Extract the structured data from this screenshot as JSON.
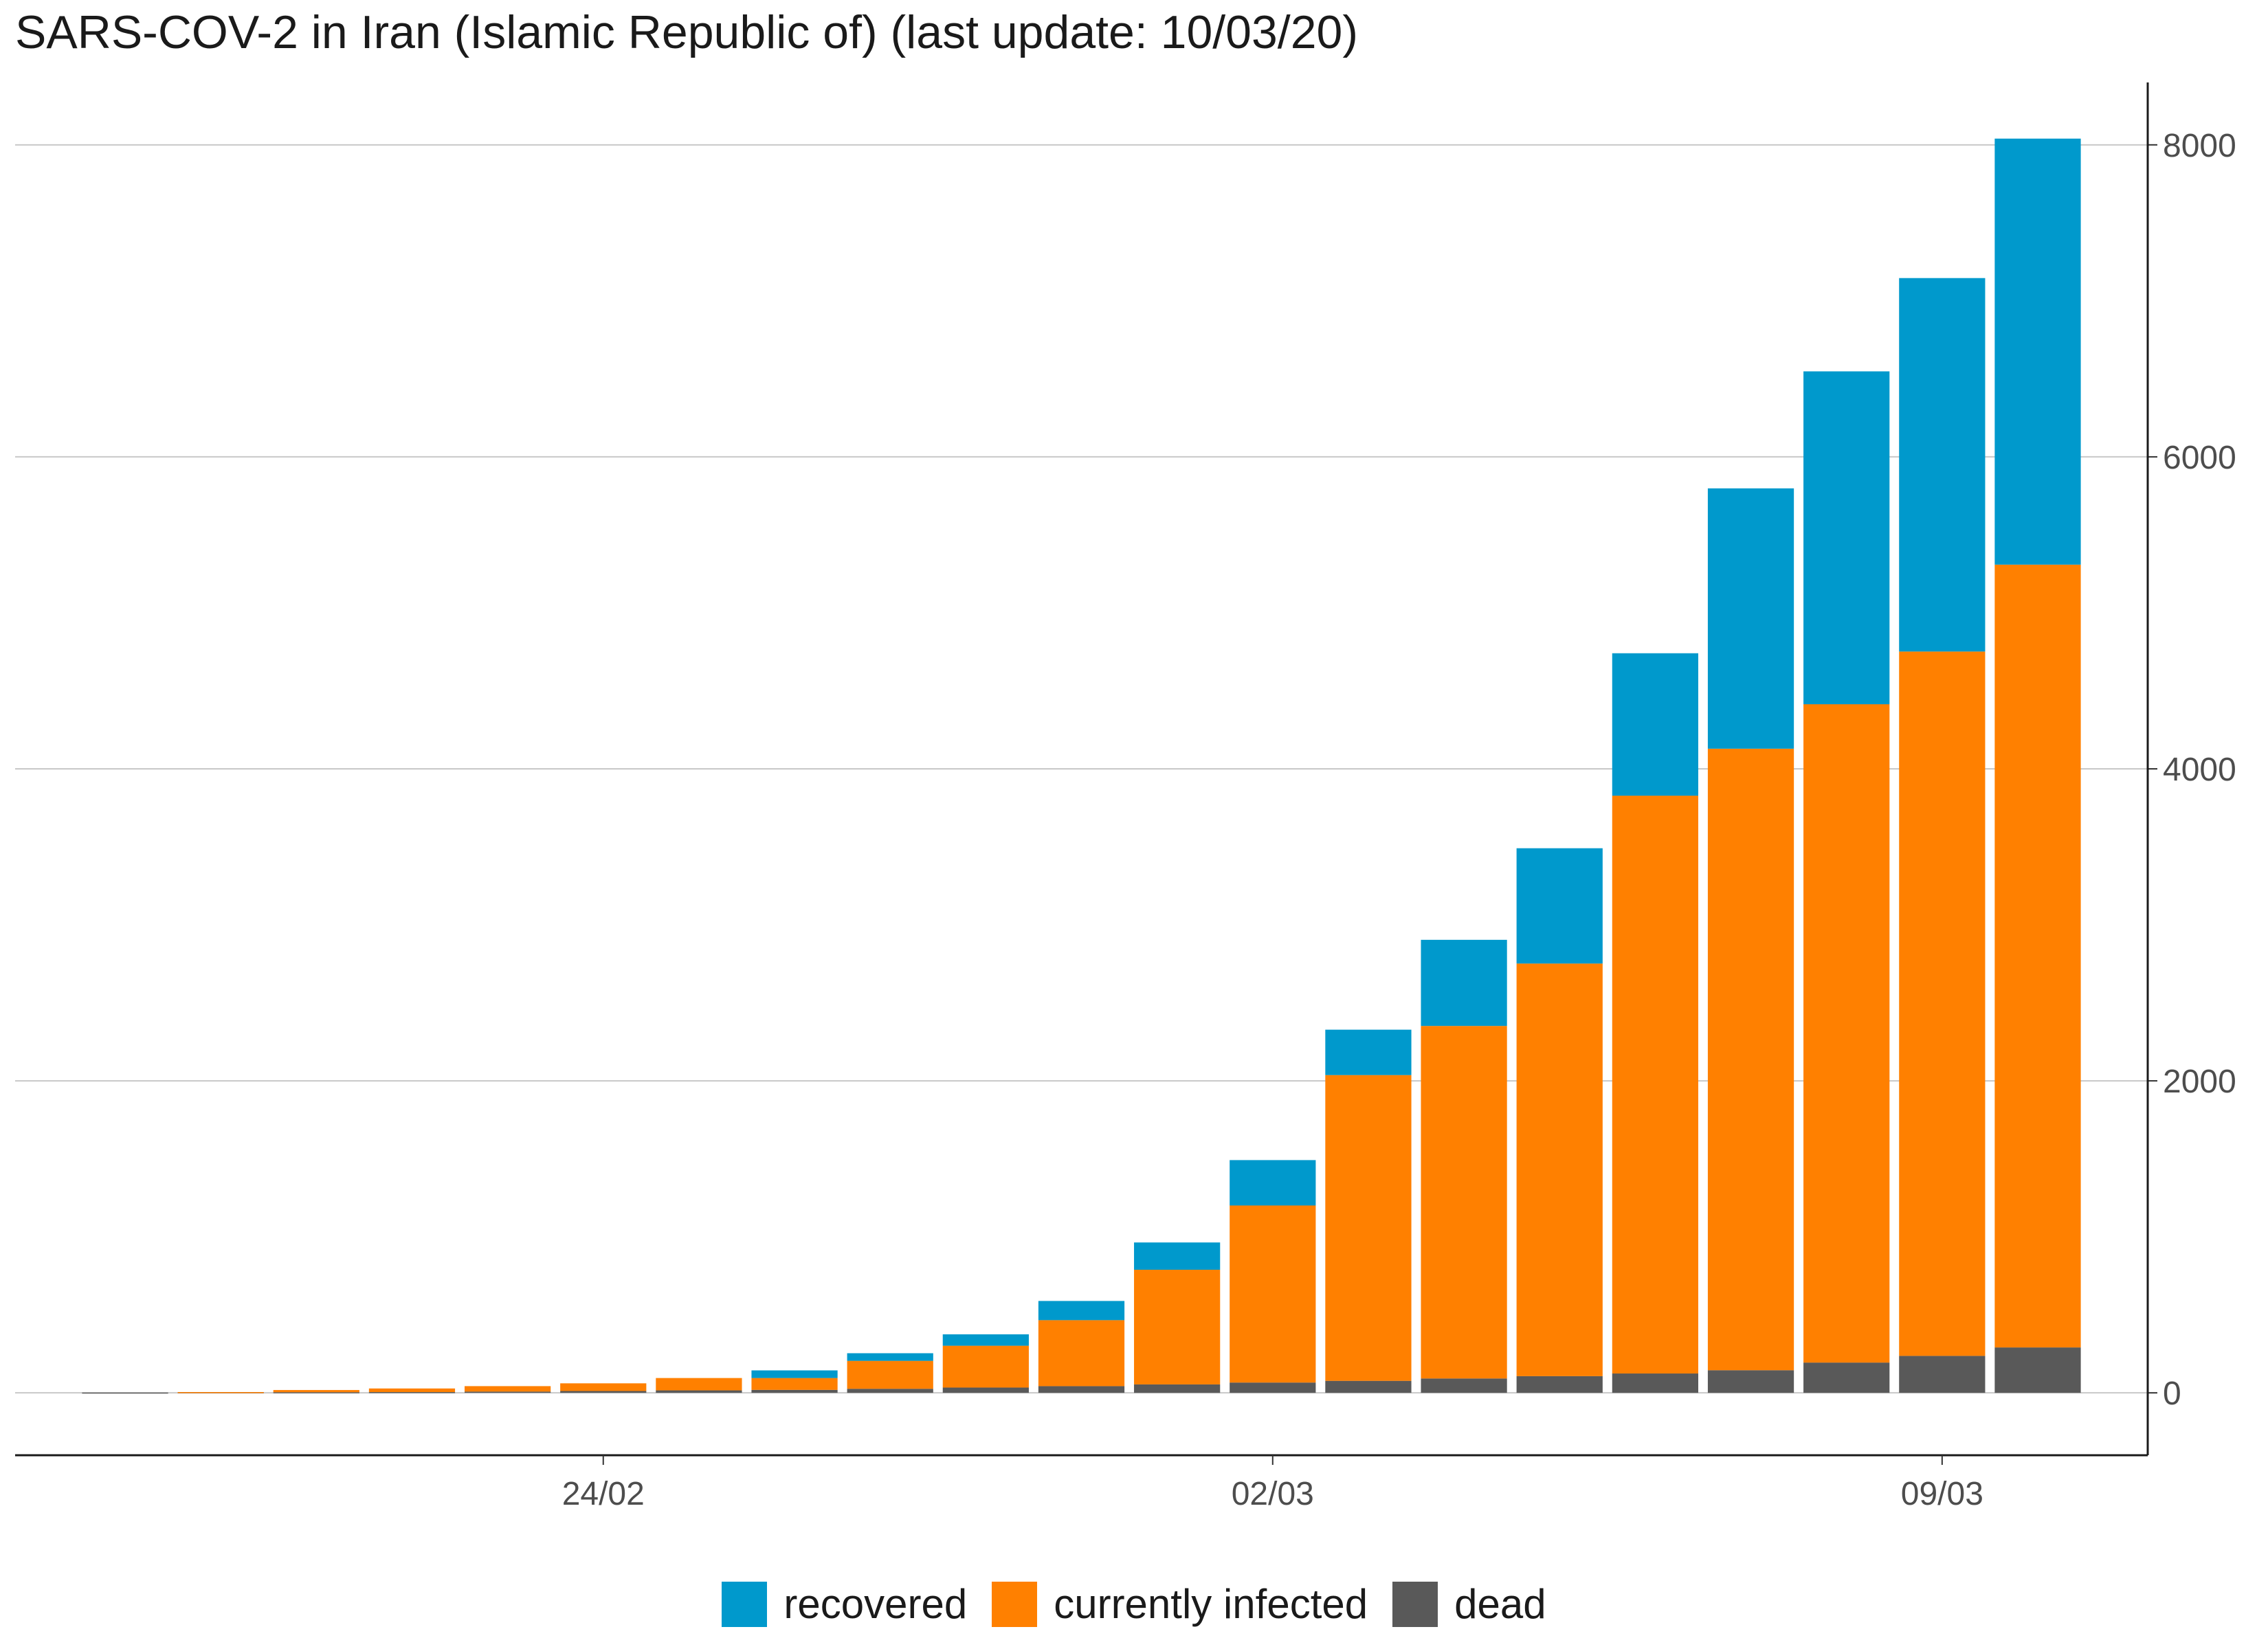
{
  "chart_data": {
    "type": "bar",
    "stacked": true,
    "title": "SARS-COV-2 in Iran (Islamic Republic of) (last update: 10/03/20)",
    "xlabel": "",
    "ylabel": "",
    "x_tick_labels": [
      "24/02",
      "02/03",
      "09/03"
    ],
    "y_ticks": [
      0,
      2000,
      4000,
      6000,
      8000
    ],
    "ylim": [
      -400,
      8400
    ],
    "y_axis_side": "right",
    "grid": "horizontal major",
    "legend_position": "bottom",
    "categories": [
      "19/02",
      "20/02",
      "21/02",
      "22/02",
      "23/02",
      "24/02",
      "25/02",
      "26/02",
      "27/02",
      "28/02",
      "29/02",
      "01/03",
      "02/03",
      "03/03",
      "04/03",
      "05/03",
      "06/03",
      "07/03",
      "08/03",
      "09/03",
      "10/03"
    ],
    "series": [
      {
        "name": "dead",
        "color": "#595959",
        "values": [
          2,
          4,
          4,
          5,
          8,
          12,
          16,
          19,
          26,
          34,
          43,
          54,
          66,
          77,
          92,
          107,
          124,
          145,
          194,
          237,
          291
        ]
      },
      {
        "name": "currently infected",
        "color": "#FF8000",
        "values": [
          0,
          1,
          14,
          23,
          35,
          49,
          79,
          76,
          179,
          268,
          423,
          735,
          1135,
          1960,
          2260,
          2645,
          3704,
          3984,
          4220,
          4515,
          5018
        ]
      },
      {
        "name": "recovered",
        "color": "#0099CC",
        "values": [
          0,
          0,
          0,
          0,
          0,
          0,
          0,
          49,
          49,
          73,
          123,
          175,
          291,
          291,
          552,
          739,
          913,
          1669,
          2134,
          2394,
          2731
        ]
      }
    ]
  },
  "legend": [
    {
      "label": "recovered",
      "color": "#0099CC"
    },
    {
      "label": "currently infected",
      "color": "#FF8000"
    },
    {
      "label": "dead",
      "color": "#595959"
    }
  ]
}
